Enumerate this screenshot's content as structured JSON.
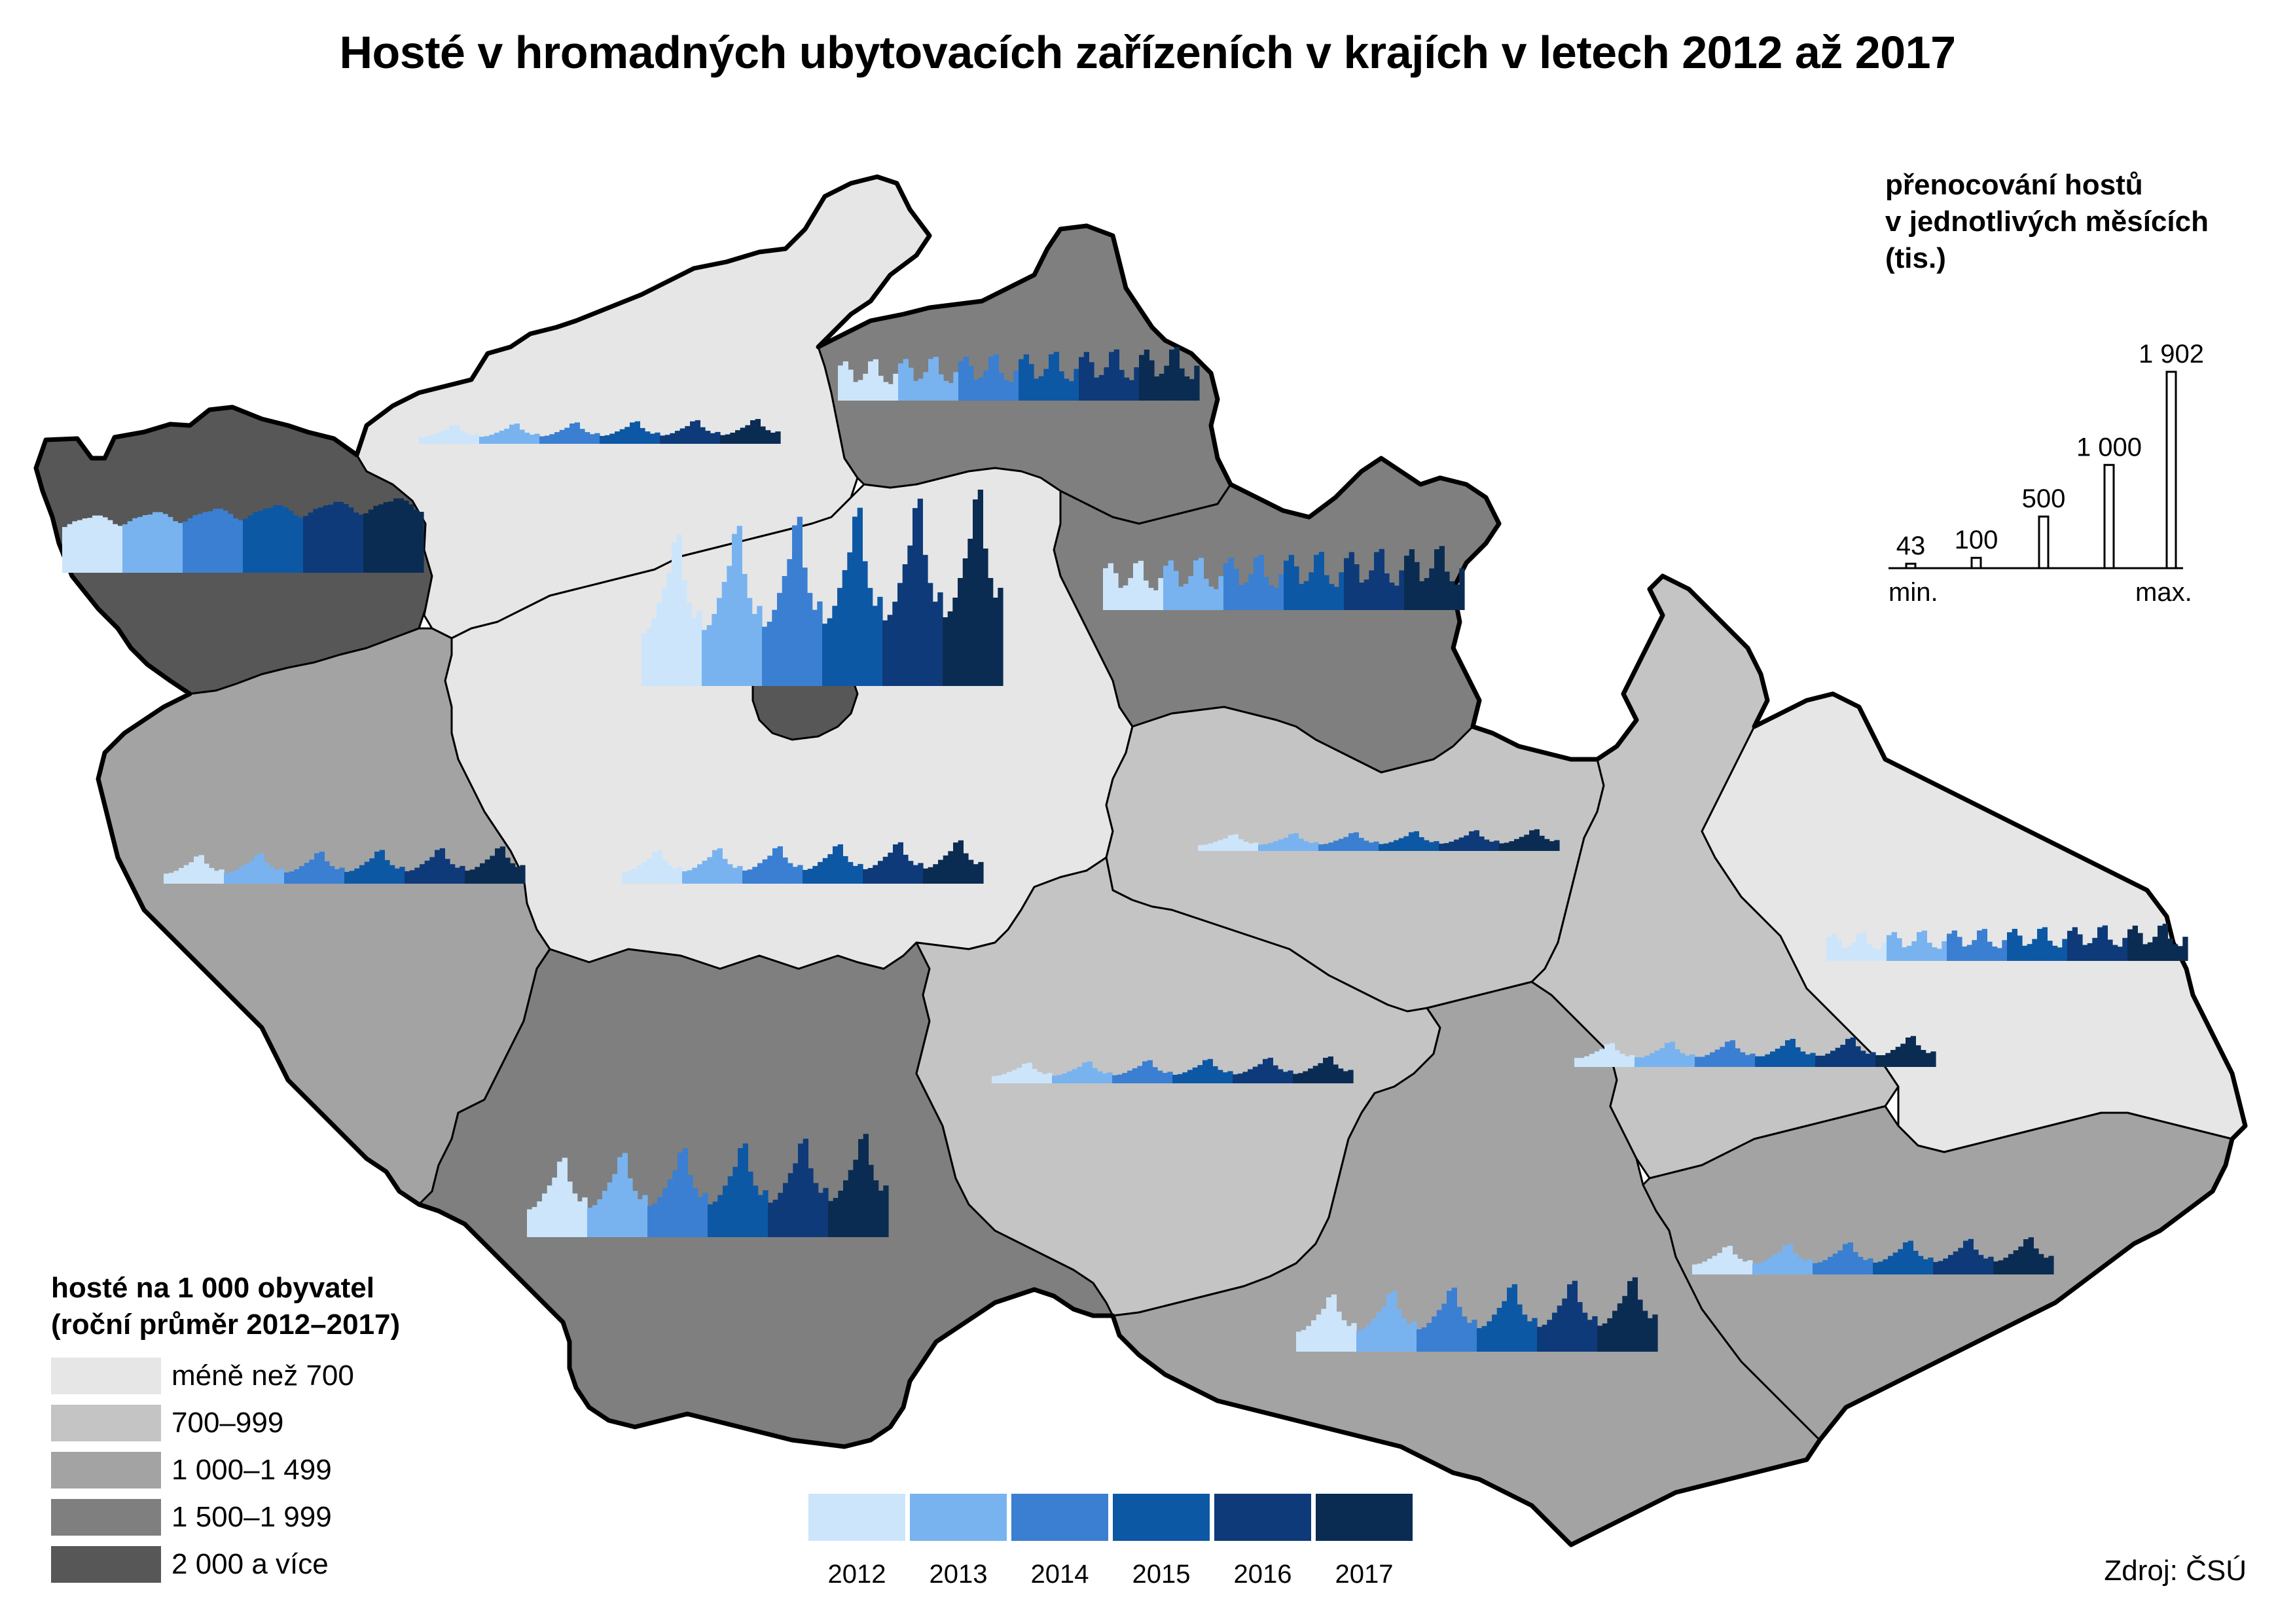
{
  "title": "Hosté v hromadných ubytovacích zařízeních v krajích v letech 2012 až 2017",
  "legend_choropleth": {
    "title_line1": "hosté na 1 000 obyvatel",
    "title_line2": "(roční průměr 2012–2017)",
    "classes": [
      {
        "label": "méně než 700",
        "color": "#e6e6e6"
      },
      {
        "label": "700–999",
        "color": "#c4c4c4"
      },
      {
        "label": "1 000–1 499",
        "color": "#a3a3a3"
      },
      {
        "label": "1 500–1 999",
        "color": "#7f7f7f"
      },
      {
        "label": "2 000 a více",
        "color": "#575757"
      }
    ]
  },
  "legend_scale": {
    "title_line1": "přenocování hostů",
    "title_line2": "v jednotlivých měsících",
    "title_line3": "(tis.)",
    "values": [
      {
        "label": "43",
        "value": 43
      },
      {
        "label": "100",
        "value": 100
      },
      {
        "label": "500",
        "value": 500
      },
      {
        "label": "1 000",
        "value": 1000
      },
      {
        "label": "1 902",
        "value": 1902
      }
    ],
    "min_label": "min.",
    "max_label": "max."
  },
  "legend_years": [
    {
      "label": "2012",
      "color": "#cce5fb"
    },
    {
      "label": "2013",
      "color": "#78b3f0"
    },
    {
      "label": "2014",
      "color": "#3a7fd1"
    },
    {
      "label": "2015",
      "color": "#0d58a4"
    },
    {
      "label": "2016",
      "color": "#0e3a7a"
    },
    {
      "label": "2017",
      "color": "#0b2c52"
    }
  ],
  "source": "Zdroj: ČSÚ",
  "regions": [
    {
      "id": "praha",
      "class": 4
    },
    {
      "id": "stredocesky",
      "class": 0
    },
    {
      "id": "jihocesky",
      "class": 3
    },
    {
      "id": "plzensky",
      "class": 2
    },
    {
      "id": "karlovarsky",
      "class": 4
    },
    {
      "id": "ustecky",
      "class": 0
    },
    {
      "id": "liberecky",
      "class": 3
    },
    {
      "id": "kralovehradecky",
      "class": 3
    },
    {
      "id": "pardubicky",
      "class": 1
    },
    {
      "id": "vysocina",
      "class": 1
    },
    {
      "id": "jihomoravsky",
      "class": 2
    },
    {
      "id": "olomoucky",
      "class": 1
    },
    {
      "id": "zlinsky",
      "class": 2
    },
    {
      "id": "moravskoslezsky",
      "class": 0
    }
  ],
  "chart_data": {
    "type": "bar",
    "description_units": "monthly guest nights (thousands), 12 months x 6 years per region",
    "years": [
      "2012",
      "2013",
      "2014",
      "2015",
      "2016",
      "2017"
    ],
    "series": [
      {
        "region": "praha",
        "peak": 1902,
        "base": 950,
        "shape": "summer"
      },
      {
        "region": "karlovarsky",
        "peak": 720,
        "base": 560,
        "shape": "flat"
      },
      {
        "region": "ustecky",
        "peak": 240,
        "base": 110,
        "shape": "summer"
      },
      {
        "region": "liberecky",
        "peak": 520,
        "base": 310,
        "shape": "double"
      },
      {
        "region": "kralovehradecky",
        "peak": 620,
        "base": 260,
        "shape": "double"
      },
      {
        "region": "plzensky",
        "peak": 360,
        "base": 140,
        "shape": "summer"
      },
      {
        "region": "stredocesky",
        "peak": 420,
        "base": 110,
        "shape": "summer"
      },
      {
        "region": "jihocesky",
        "peak": 1000,
        "base": 200,
        "shape": "summer"
      },
      {
        "region": "pardubicky",
        "peak": 210,
        "base": 90,
        "shape": "summer"
      },
      {
        "region": "vysocina",
        "peak": 260,
        "base": 90,
        "shape": "summer"
      },
      {
        "region": "jihomoravsky",
        "peak": 720,
        "base": 330,
        "shape": "summer"
      },
      {
        "region": "olomoucky",
        "peak": 300,
        "base": 190,
        "shape": "summer"
      },
      {
        "region": "zlinsky",
        "peak": 360,
        "base": 200,
        "shape": "summer"
      },
      {
        "region": "moravskoslezsky",
        "peak": 360,
        "base": 200,
        "shape": "double"
      }
    ]
  }
}
